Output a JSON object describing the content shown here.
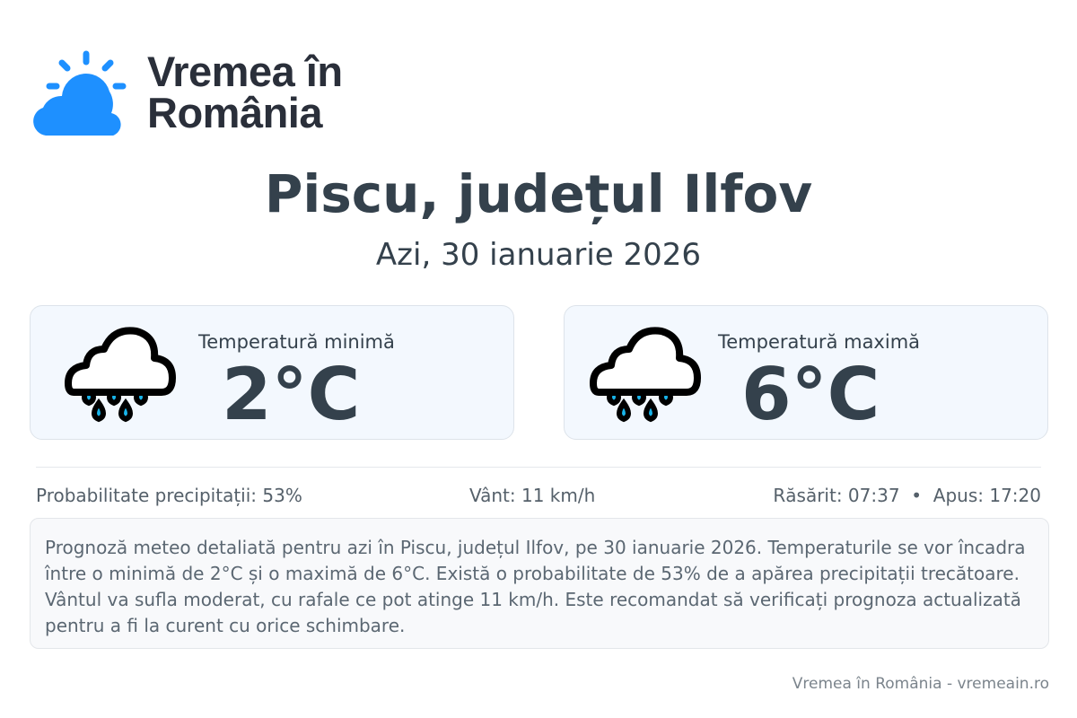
{
  "brand": {
    "name_line1": "Vremea în",
    "name_line2": "România",
    "logo_icon": "sun-behind-cloud-icon",
    "color": "#1e90ff"
  },
  "location": {
    "title": "Piscu, județul Ilfov",
    "date": "Azi, 30 ianuarie 2026"
  },
  "cards": [
    {
      "label": "Temperatură minimă",
      "value": "2°C",
      "icon": "rain-cloud-icon"
    },
    {
      "label": "Temperatură maximă",
      "value": "6°C",
      "icon": "rain-cloud-icon"
    }
  ],
  "stats": {
    "precip": "Probabilitate precipitații: 53%",
    "wind": "Vânt: 11 km/h",
    "sun": "Răsărit: 07:37  •  Apus: 17:20"
  },
  "description": "Prognoză meteo detaliată pentru azi în Piscu, județul Ilfov, pe 30 ianuarie 2026. Temperaturile se vor încadra între o minimă de 2°C și o maximă de 6°C. Există o probabilitate de 53% de a apărea precipitații trecătoare. Vântul va sufla moderat, cu rafale ce pot atinge 11 km/h. Este recomandat să verificați prognoza actualizată pentru a fi la curent cu orice schimbare.",
  "footer": "Vremea în România - vremeain.ro"
}
